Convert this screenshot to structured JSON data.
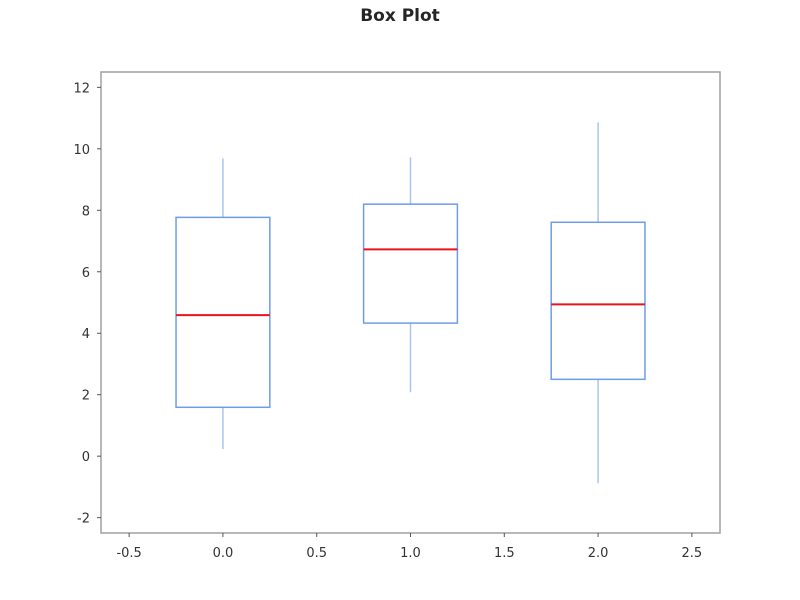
{
  "chart_data": {
    "type": "box",
    "title": "Box Plot",
    "xlabel": "",
    "ylabel": "",
    "xlim": [
      -0.65,
      2.65
    ],
    "ylim": [
      -2.5,
      12.5
    ],
    "x_ticks": [
      "-0.5",
      "0.0",
      "0.5",
      "1.0",
      "1.5",
      "2.0",
      "2.5"
    ],
    "y_ticks": [
      "-2",
      "0",
      "2",
      "4",
      "6",
      "8",
      "10",
      "12"
    ],
    "grid": false,
    "legend": null,
    "box_color": "#6f9ce8",
    "whisker_color": "#a9c4f0",
    "median_color": "#e8141e",
    "boxes": [
      {
        "x": 0,
        "whisker_low": 0.23,
        "q1": 1.59,
        "median": 4.59,
        "q3": 7.77,
        "whisker_high": 9.69
      },
      {
        "x": 1,
        "whisker_low": 2.08,
        "q1": 4.33,
        "median": 6.73,
        "q3": 8.2,
        "whisker_high": 9.72
      },
      {
        "x": 2,
        "whisker_low": -0.88,
        "q1": 2.5,
        "median": 4.94,
        "q3": 7.61,
        "whisker_high": 10.86
      }
    ]
  }
}
